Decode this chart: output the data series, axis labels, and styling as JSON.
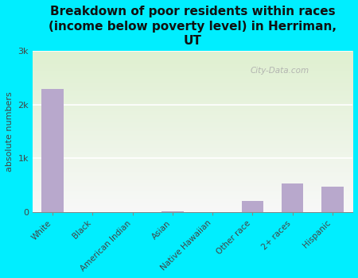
{
  "title": "Breakdown of poor residents within races\n(income below poverty level) in Herriman,\nUT",
  "categories": [
    "White",
    "Black",
    "American Indian",
    "Asian",
    "Native Hawaiian",
    "Other race",
    "2+ races",
    "Hispanic"
  ],
  "values": [
    2300,
    0,
    0,
    15,
    0,
    200,
    530,
    470
  ],
  "bar_color": "#b8a8cc",
  "ylabel": "absolute numbers",
  "yticks": [
    0,
    1000,
    2000,
    3000
  ],
  "ytick_labels": [
    "0",
    "1k",
    "2k",
    "3k"
  ],
  "ylim": [
    0,
    3000
  ],
  "bg_outer": "#00eeff",
  "bg_plot_top": "#dff0d0",
  "bg_plot_bottom": "#f8f8f8",
  "title_fontsize": 11,
  "watermark": "City-Data.com",
  "tick_label_color": "#444444"
}
